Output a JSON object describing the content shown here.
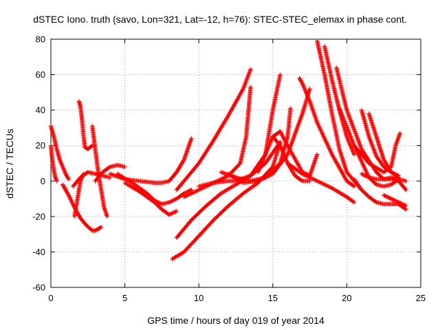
{
  "chart_data": {
    "type": "scatter",
    "title": "dSTEC Iono. truth (savo, Lon=321, Lat=-12, h=76): STEC-STEC_elemax in phase cont.",
    "xlabel": "GPS time / hours of day 019 of year 2014",
    "ylabel": "dSTEC  / TECUs",
    "xlim": [
      0,
      25
    ],
    "ylim": [
      -60,
      80
    ],
    "xticks": [
      "0",
      "5",
      "10",
      "15",
      "20",
      "25"
    ],
    "yticks": [
      "-60",
      "-40",
      "-20",
      "0",
      "20",
      "40",
      "60",
      "80"
    ],
    "grid": true,
    "marker": "+",
    "color": "#ff0000",
    "series": [
      {
        "x": [
          0.0,
          0.2,
          0.4,
          0.6,
          0.8,
          1.0,
          1.2
        ],
        "y": [
          31,
          25,
          18,
          12,
          8,
          4,
          1
        ]
      },
      {
        "x": [
          0.0,
          0.1,
          0.2,
          0.3,
          0.4
        ],
        "y": [
          20,
          12,
          6,
          2,
          0
        ]
      },
      {
        "x": [
          0.8,
          1.2,
          1.6,
          2.0,
          2.4,
          2.8,
          3.0,
          3.4
        ],
        "y": [
          -2,
          -8,
          -15,
          -21,
          -25,
          -28,
          -28,
          -26
        ]
      },
      {
        "x": [
          1.6,
          1.8,
          2.0,
          2.2
        ],
        "y": [
          -20,
          -10,
          0,
          4
        ]
      },
      {
        "x": [
          1.9,
          2.0,
          2.1,
          2.2,
          2.3,
          2.5,
          2.8
        ],
        "y": [
          45,
          42,
          35,
          26,
          19,
          18,
          20
        ]
      },
      {
        "x": [
          2.8,
          3.0,
          3.2,
          3.4,
          3.6,
          3.8
        ],
        "y": [
          31,
          18,
          5,
          -5,
          -15,
          -20
        ]
      },
      {
        "x": [
          1.5,
          2.0,
          2.5,
          3.0,
          3.5,
          4.0
        ],
        "y": [
          -3,
          2,
          5,
          4,
          3,
          2
        ]
      },
      {
        "x": [
          3.0,
          3.5,
          4.0,
          4.5,
          5.0
        ],
        "y": [
          0,
          5,
          8,
          9,
          8
        ]
      },
      {
        "x": [
          4.0,
          5.0,
          6.0,
          7.0,
          7.5,
          8.0,
          8.5,
          9.0,
          9.5
        ],
        "y": [
          4,
          1,
          0,
          -1,
          -1,
          0,
          5,
          12,
          24
        ]
      },
      {
        "x": [
          5.0,
          6.0,
          7.0,
          7.5,
          8.0,
          8.5
        ],
        "y": [
          -1,
          -6,
          -12,
          -16,
          -19,
          -17
        ]
      },
      {
        "x": [
          4.5,
          5.5,
          6.5,
          7.0,
          7.5,
          8.0,
          8.5,
          9.0,
          9.5
        ],
        "y": [
          4,
          -1,
          -7,
          -11,
          -13,
          -12,
          -10,
          -7,
          -5
        ]
      },
      {
        "x": [
          8.5,
          9.0,
          10.0,
          11.0,
          12.0,
          13.0,
          13.5
        ],
        "y": [
          -5,
          0,
          10,
          23,
          37,
          52,
          63
        ]
      },
      {
        "x": [
          8.2,
          9.0,
          10.0,
          11.0,
          12.0,
          13.0,
          14.0,
          15.0,
          15.5
        ],
        "y": [
          -44,
          -40,
          -31,
          -22,
          -14,
          -7,
          -1,
          8,
          22
        ]
      },
      {
        "x": [
          8.5,
          9.5,
          10.5,
          11.5,
          12.5,
          13.5,
          14.5,
          15.5
        ],
        "y": [
          -32,
          -22,
          -14,
          -7,
          -2,
          3,
          10,
          22
        ]
      },
      {
        "x": [
          9.0,
          10.0,
          11.0,
          12.0,
          12.8,
          13.2,
          13.5
        ],
        "y": [
          -9,
          -5,
          -1,
          3,
          10,
          25,
          53
        ]
      },
      {
        "x": [
          10.0,
          11.0,
          12.0,
          12.5,
          13.5,
          14.5,
          15.0,
          15.5
        ],
        "y": [
          -3,
          -1,
          0,
          0,
          3,
          15,
          40,
          60
        ]
      },
      {
        "x": [
          11.5,
          12.5,
          13.5,
          14.5,
          15.5,
          16.0,
          16.2
        ],
        "y": [
          5,
          2,
          0,
          2,
          10,
          25,
          41
        ]
      },
      {
        "x": [
          12.0,
          13.0,
          14.0,
          15.0,
          16.0,
          17.0,
          17.5
        ],
        "y": [
          4,
          -1,
          0,
          4,
          15,
          38,
          52
        ]
      },
      {
        "x": [
          14.0,
          15.0,
          15.5,
          16.0,
          17.0,
          17.5,
          18.0
        ],
        "y": [
          5,
          25,
          28,
          20,
          5,
          3,
          15
        ]
      },
      {
        "x": [
          15.0,
          15.5,
          16.0,
          16.5,
          17.0,
          17.5
        ],
        "y": [
          25,
          20,
          10,
          3,
          0,
          0
        ]
      },
      {
        "x": [
          16.8,
          17.0,
          17.5,
          18.0,
          19.0,
          20.0,
          20.5
        ],
        "y": [
          58,
          55,
          45,
          33,
          15,
          0,
          -3
        ]
      },
      {
        "x": [
          18.0,
          18.5,
          19.0,
          19.5,
          20.0,
          21.0
        ],
        "y": [
          79,
          60,
          38,
          18,
          5,
          -5
        ]
      },
      {
        "x": [
          18.5,
          19.0,
          19.5,
          20.0,
          20.5
        ],
        "y": [
          76,
          57,
          40,
          25,
          15
        ]
      },
      {
        "x": [
          16.0,
          17.0,
          18.0,
          19.0,
          20.0,
          20.5
        ],
        "y": [
          10,
          4,
          0,
          -4,
          -9,
          -12
        ]
      },
      {
        "x": [
          19.3,
          20.0,
          21.0,
          22.0,
          22.5,
          23.0,
          23.5
        ],
        "y": [
          64,
          40,
          18,
          5,
          1,
          1,
          2
        ]
      },
      {
        "x": [
          19.5,
          20.5,
          21.5,
          22.0,
          22.5,
          23.0,
          23.5,
          24.0
        ],
        "y": [
          41,
          20,
          2,
          -2,
          -3,
          -2,
          1,
          0
        ]
      },
      {
        "x": [
          20.5,
          21.0,
          21.5,
          22.0,
          22.5,
          23.0,
          23.5,
          24.0
        ],
        "y": [
          1,
          -5,
          -9,
          -12,
          -13,
          -13,
          -13,
          -16
        ]
      },
      {
        "x": [
          21.0,
          21.5,
          22.0,
          22.5,
          23.0,
          23.5
        ],
        "y": [
          40,
          25,
          14,
          8,
          5,
          3
        ]
      },
      {
        "x": [
          21.0,
          21.5,
          22.0,
          22.5,
          23.0,
          23.5,
          24.0
        ],
        "y": [
          4,
          2,
          1,
          1,
          2,
          0,
          -5
        ]
      },
      {
        "x": [
          21.5,
          22.0,
          22.5,
          23.0,
          23.5
        ],
        "y": [
          38,
          25,
          12,
          5,
          2
        ]
      },
      {
        "x": [
          20.5,
          21.5,
          22.5,
          23.0,
          23.3,
          23.6
        ],
        "y": [
          20,
          10,
          5,
          8,
          20,
          27
        ]
      },
      {
        "x": [
          22.5,
          23.0,
          23.5,
          24.0
        ],
        "y": [
          -8,
          -10,
          -12,
          -14
        ]
      }
    ]
  }
}
